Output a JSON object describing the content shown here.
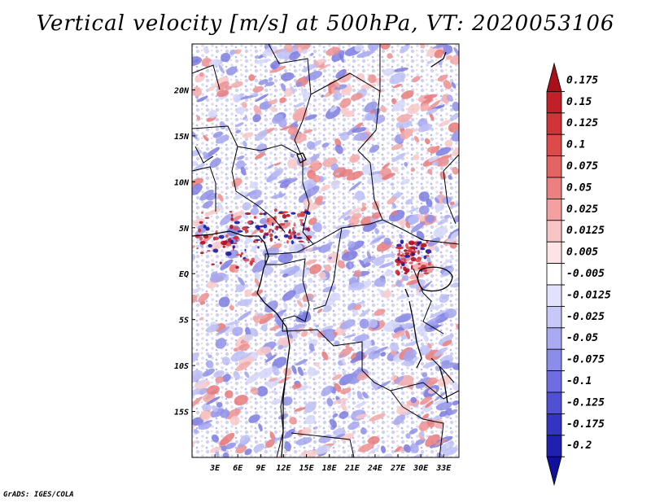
{
  "map": {
    "title": "Vertical velocity [m/s] at 500hPa, VT: 2020053106",
    "credit": "GrADS: IGES/COLA",
    "lat_labels": [
      "20N",
      "15N",
      "10N",
      "5N",
      "EQ",
      "5S",
      "10S",
      "15S"
    ],
    "lat_values": [
      20,
      15,
      10,
      5,
      0,
      -5,
      -10,
      -15
    ],
    "lon_labels": [
      "3E",
      "6E",
      "9E",
      "12E",
      "15E",
      "18E",
      "21E",
      "24E",
      "27E",
      "30E",
      "33E"
    ],
    "lon_values": [
      3,
      6,
      9,
      12,
      15,
      18,
      21,
      24,
      27,
      30,
      33
    ],
    "lat_range": [
      -20,
      25
    ],
    "lon_range": [
      0,
      35
    ],
    "colorbar": {
      "labels": [
        "0.175",
        "0.15",
        "0.125",
        "0.1",
        "0.075",
        "0.05",
        "0.025",
        "0.0125",
        "0.005",
        "-0.005",
        "-0.0125",
        "-0.025",
        "-0.05",
        "-0.075",
        "-0.1",
        "-0.125",
        "-0.175",
        "-0.2"
      ],
      "colors": [
        "#a8101a",
        "#c02028",
        "#d03438",
        "#dc4a4a",
        "#e46464",
        "#ec8080",
        "#f2a0a0",
        "#f8c4c4",
        "#fce4e4",
        "#ffffff",
        "#e2e2fc",
        "#c8c8f8",
        "#aaaaf2",
        "#8c8cea",
        "#6e6ee0",
        "#5050d4",
        "#3434c4",
        "#2020b0",
        "#10109a"
      ]
    }
  }
}
